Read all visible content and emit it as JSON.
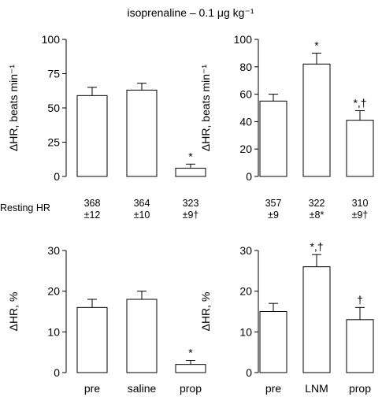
{
  "title": "isoprenaline – 0.1 μg kg⁻¹",
  "resting_label": "Resting HR",
  "chart_data": [
    {
      "type": "bar",
      "panel": "top-left",
      "ylabel": "ΔHR, beats min⁻¹",
      "ylim": [
        0,
        100
      ],
      "yticks": [
        0,
        25,
        50,
        75,
        100
      ],
      "categories": [
        "pre",
        "saline",
        "prop"
      ],
      "values": [
        59,
        63,
        6
      ],
      "errors": [
        6,
        5,
        3
      ],
      "annotations": [
        "",
        "",
        "*"
      ],
      "resting_hr": [
        {
          "mean": "368",
          "sd": "±12"
        },
        {
          "mean": "364",
          "sd": "±10"
        },
        {
          "mean": "323",
          "sd": "±9†"
        }
      ],
      "grid": false
    },
    {
      "type": "bar",
      "panel": "top-right",
      "ylabel": "ΔHR, beats min⁻¹",
      "ylim": [
        0,
        100
      ],
      "yticks": [
        0,
        20,
        40,
        60,
        80,
        100
      ],
      "categories": [
        "pre",
        "LNM",
        "prop"
      ],
      "values": [
        55,
        82,
        41
      ],
      "errors": [
        5,
        8,
        7
      ],
      "annotations": [
        "",
        "*",
        "*,†"
      ],
      "resting_hr": [
        {
          "mean": "357",
          "sd": "±9"
        },
        {
          "mean": "322",
          "sd": "±8*"
        },
        {
          "mean": "310",
          "sd": "±9†"
        }
      ],
      "grid": false
    },
    {
      "type": "bar",
      "panel": "bottom-left",
      "ylabel": "ΔHR, %",
      "ylim": [
        0,
        30
      ],
      "yticks": [
        0,
        10,
        20,
        30
      ],
      "categories": [
        "pre",
        "saline",
        "prop"
      ],
      "values": [
        16,
        18,
        2
      ],
      "errors": [
        2,
        2,
        1
      ],
      "annotations": [
        "",
        "",
        "*"
      ],
      "grid": false
    },
    {
      "type": "bar",
      "panel": "bottom-right",
      "ylabel": "ΔHR, %",
      "ylim": [
        0,
        30
      ],
      "yticks": [
        0,
        10,
        20,
        30
      ],
      "categories": [
        "pre",
        "LNM",
        "prop"
      ],
      "values": [
        15,
        26,
        13
      ],
      "errors": [
        2,
        3,
        3
      ],
      "annotations": [
        "",
        "*,†",
        "†"
      ],
      "grid": false
    }
  ]
}
